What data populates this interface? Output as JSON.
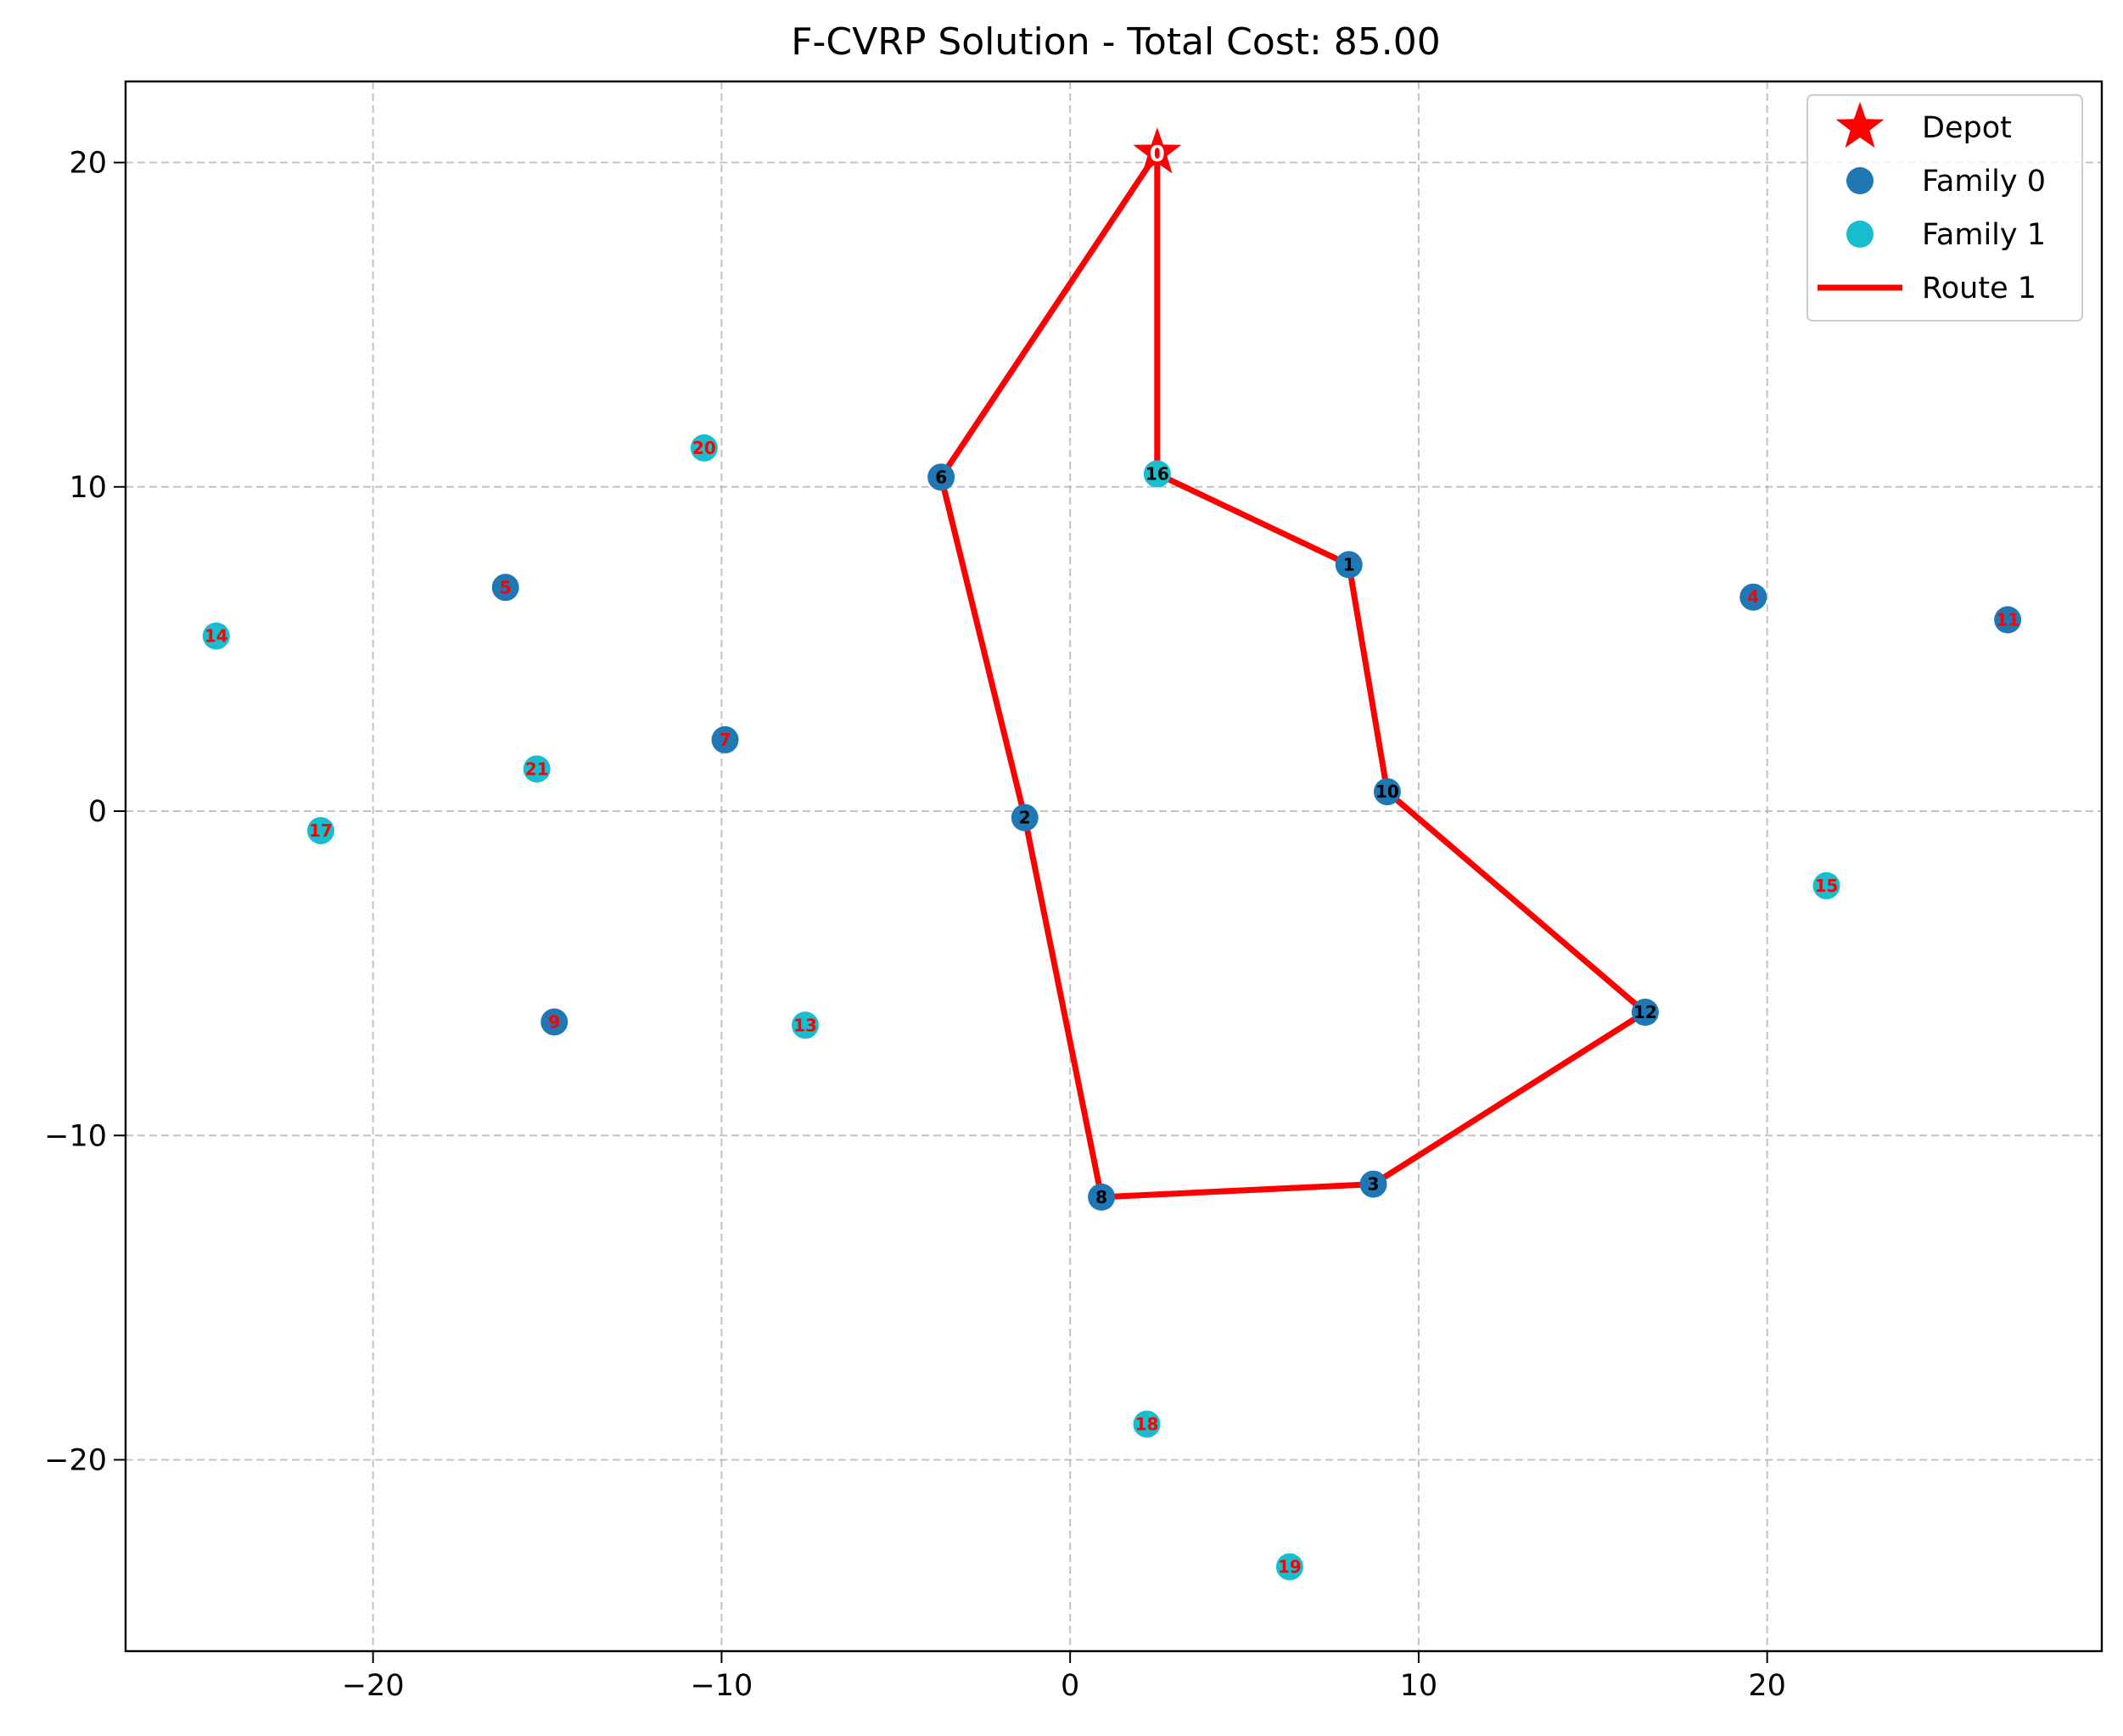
{
  "chart_data": {
    "type": "scatter",
    "title": "F-CVRP Solution - Total Cost: 85.00",
    "xlabel": "",
    "ylabel": "",
    "xlim": [
      -27.1,
      29.6
    ],
    "ylim": [
      -25.9,
      22.5
    ],
    "xticks": [
      -20,
      -10,
      0,
      10,
      20
    ],
    "yticks": [
      -20,
      -10,
      0,
      10,
      20
    ],
    "xtick_labels": [
      "−20",
      "−10",
      "0",
      "10",
      "20"
    ],
    "ytick_labels": [
      "−20",
      "−10",
      "0",
      "10",
      "20"
    ],
    "grid": true,
    "legend_position": "top-right",
    "colors": {
      "depot": "#ff0000",
      "family_0": "#1f77b4",
      "family_1": "#17becf",
      "route": "#ff0000",
      "label_on_route": "#000000",
      "label_off_route": "#ff0000",
      "depot_label": "#ffffff"
    },
    "depot": {
      "id": "0",
      "name": "Depot",
      "x": 2.5,
      "y": 20.3
    },
    "series": [
      {
        "name": "Family 0",
        "color": "#1f77b4",
        "points": [
          {
            "id": "1",
            "x": 8.0,
            "y": 7.6,
            "on_route": true
          },
          {
            "id": "2",
            "x": -1.3,
            "y": -0.2,
            "on_route": true
          },
          {
            "id": "3",
            "x": 8.7,
            "y": -11.5,
            "on_route": true
          },
          {
            "id": "4",
            "x": 19.6,
            "y": 6.6,
            "on_route": false
          },
          {
            "id": "5",
            "x": -16.2,
            "y": 6.9,
            "on_route": false
          },
          {
            "id": "6",
            "x": -3.7,
            "y": 10.3,
            "on_route": true
          },
          {
            "id": "7",
            "x": -9.9,
            "y": 2.2,
            "on_route": false
          },
          {
            "id": "8",
            "x": 0.9,
            "y": -11.9,
            "on_route": true
          },
          {
            "id": "9",
            "x": -14.8,
            "y": -6.5,
            "on_route": false
          },
          {
            "id": "10",
            "x": 9.1,
            "y": 0.6,
            "on_route": true
          },
          {
            "id": "11",
            "x": 26.9,
            "y": 5.9,
            "on_route": false
          },
          {
            "id": "12",
            "x": 16.5,
            "y": -6.2,
            "on_route": true
          }
        ]
      },
      {
        "name": "Family 1",
        "color": "#17becf",
        "points": [
          {
            "id": "13",
            "x": -7.6,
            "y": -6.6,
            "on_route": false
          },
          {
            "id": "14",
            "x": -24.5,
            "y": 5.4,
            "on_route": false
          },
          {
            "id": "15",
            "x": 21.7,
            "y": -2.3,
            "on_route": false
          },
          {
            "id": "16",
            "x": 2.5,
            "y": 10.4,
            "on_route": true
          },
          {
            "id": "17",
            "x": -21.5,
            "y": -0.6,
            "on_route": false
          },
          {
            "id": "18",
            "x": 2.2,
            "y": -18.9,
            "on_route": false
          },
          {
            "id": "19",
            "x": 6.3,
            "y": -23.3,
            "on_route": false
          },
          {
            "id": "20",
            "x": -10.5,
            "y": 11.2,
            "on_route": false
          },
          {
            "id": "21",
            "x": -15.3,
            "y": 1.3,
            "on_route": false
          }
        ]
      }
    ],
    "routes": [
      {
        "name": "Route 1",
        "color": "#ff0000",
        "stops": [
          "0",
          "6",
          "2",
          "8",
          "3",
          "12",
          "10",
          "1",
          "16",
          "0"
        ]
      }
    ],
    "legend": [
      {
        "label": "Depot",
        "marker": "star",
        "color": "#ff0000"
      },
      {
        "label": "Family 0",
        "marker": "circle",
        "color": "#1f77b4"
      },
      {
        "label": "Family 1",
        "marker": "circle",
        "color": "#17becf"
      },
      {
        "label": "Route 1",
        "marker": "line",
        "color": "#ff0000"
      }
    ]
  }
}
